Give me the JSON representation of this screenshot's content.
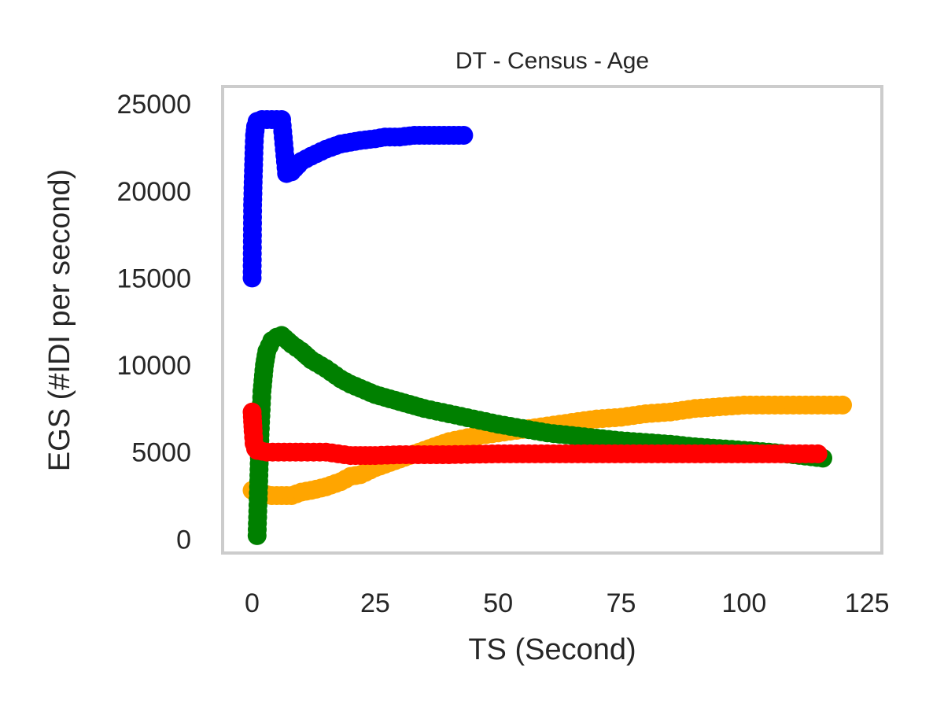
{
  "chart_data": {
    "type": "line",
    "title": "DT - Census - Age",
    "xlabel": "TS (Second)",
    "ylabel": "EGS (#IDI  per second)",
    "xlim": [
      -6,
      128
    ],
    "ylim": [
      -800,
      26000
    ],
    "xticks": [
      0,
      25,
      50,
      75,
      100,
      125
    ],
    "yticks": [
      0,
      5000,
      10000,
      15000,
      20000,
      25000
    ],
    "grid": false,
    "series": [
      {
        "color": "#0000ff",
        "points": [
          [
            0,
            15000
          ],
          [
            0.1,
            19200
          ],
          [
            0.2,
            20500
          ],
          [
            0.3,
            21500
          ],
          [
            0.4,
            22500
          ],
          [
            0.5,
            23200
          ],
          [
            0.7,
            23700
          ],
          [
            1,
            24000
          ],
          [
            2,
            24100
          ],
          [
            3,
            24100
          ],
          [
            4,
            24100
          ],
          [
            5,
            24100
          ],
          [
            6,
            24100
          ],
          [
            7,
            21000
          ],
          [
            8,
            21100
          ],
          [
            10,
            21700
          ],
          [
            12,
            22000
          ],
          [
            15,
            22400
          ],
          [
            18,
            22700
          ],
          [
            20,
            22800
          ],
          [
            22,
            22900
          ],
          [
            25,
            23000
          ],
          [
            27,
            23100
          ],
          [
            30,
            23100
          ],
          [
            33,
            23200
          ],
          [
            36,
            23200
          ],
          [
            39,
            23200
          ],
          [
            42,
            23200
          ],
          [
            43,
            23200
          ]
        ]
      },
      {
        "color": "#ffa500",
        "points": [
          [
            0,
            2800
          ],
          [
            2,
            2600
          ],
          [
            4,
            2500
          ],
          [
            6,
            2500
          ],
          [
            8,
            2500
          ],
          [
            10,
            2700
          ],
          [
            12,
            2800
          ],
          [
            15,
            3000
          ],
          [
            18,
            3300
          ],
          [
            20,
            3600
          ],
          [
            22,
            3700
          ],
          [
            25,
            4100
          ],
          [
            28,
            4400
          ],
          [
            30,
            4600
          ],
          [
            35,
            5100
          ],
          [
            40,
            5600
          ],
          [
            45,
            5900
          ],
          [
            50,
            6100
          ],
          [
            55,
            6300
          ],
          [
            60,
            6500
          ],
          [
            65,
            6700
          ],
          [
            70,
            6900
          ],
          [
            75,
            7000
          ],
          [
            80,
            7200
          ],
          [
            85,
            7300
          ],
          [
            90,
            7500
          ],
          [
            95,
            7600
          ],
          [
            100,
            7700
          ],
          [
            105,
            7700
          ],
          [
            110,
            7700
          ],
          [
            115,
            7700
          ],
          [
            120,
            7700
          ]
        ]
      },
      {
        "color": "#008000",
        "points": [
          [
            1,
            200
          ],
          [
            1.3,
            3000
          ],
          [
            1.6,
            6000
          ],
          [
            2,
            8500
          ],
          [
            2.5,
            10000
          ],
          [
            3,
            10800
          ],
          [
            4,
            11400
          ],
          [
            5,
            11600
          ],
          [
            6,
            11700
          ],
          [
            8,
            11200
          ],
          [
            10,
            10800
          ],
          [
            12,
            10300
          ],
          [
            15,
            9800
          ],
          [
            18,
            9200
          ],
          [
            20,
            8900
          ],
          [
            25,
            8300
          ],
          [
            30,
            7900
          ],
          [
            35,
            7500
          ],
          [
            40,
            7200
          ],
          [
            45,
            6900
          ],
          [
            50,
            6600
          ],
          [
            55,
            6350
          ],
          [
            60,
            6100
          ],
          [
            65,
            5950
          ],
          [
            70,
            5800
          ],
          [
            75,
            5650
          ],
          [
            80,
            5550
          ],
          [
            85,
            5450
          ],
          [
            90,
            5300
          ],
          [
            95,
            5200
          ],
          [
            100,
            5100
          ],
          [
            105,
            5000
          ],
          [
            110,
            4850
          ],
          [
            116,
            4650
          ]
        ]
      },
      {
        "color": "#ff0000",
        "points": [
          [
            0,
            7300
          ],
          [
            0.2,
            6200
          ],
          [
            0.4,
            5500
          ],
          [
            0.7,
            5200
          ],
          [
            1,
            5100
          ],
          [
            3,
            5000
          ],
          [
            10,
            5000
          ],
          [
            15,
            5000
          ],
          [
            20,
            4800
          ],
          [
            22,
            4800
          ],
          [
            25,
            4800
          ],
          [
            30,
            4850
          ],
          [
            40,
            4850
          ],
          [
            50,
            4900
          ],
          [
            60,
            4900
          ],
          [
            70,
            4900
          ],
          [
            80,
            4900
          ],
          [
            90,
            4900
          ],
          [
            100,
            4900
          ],
          [
            110,
            4900
          ],
          [
            115,
            4900
          ]
        ]
      }
    ]
  }
}
